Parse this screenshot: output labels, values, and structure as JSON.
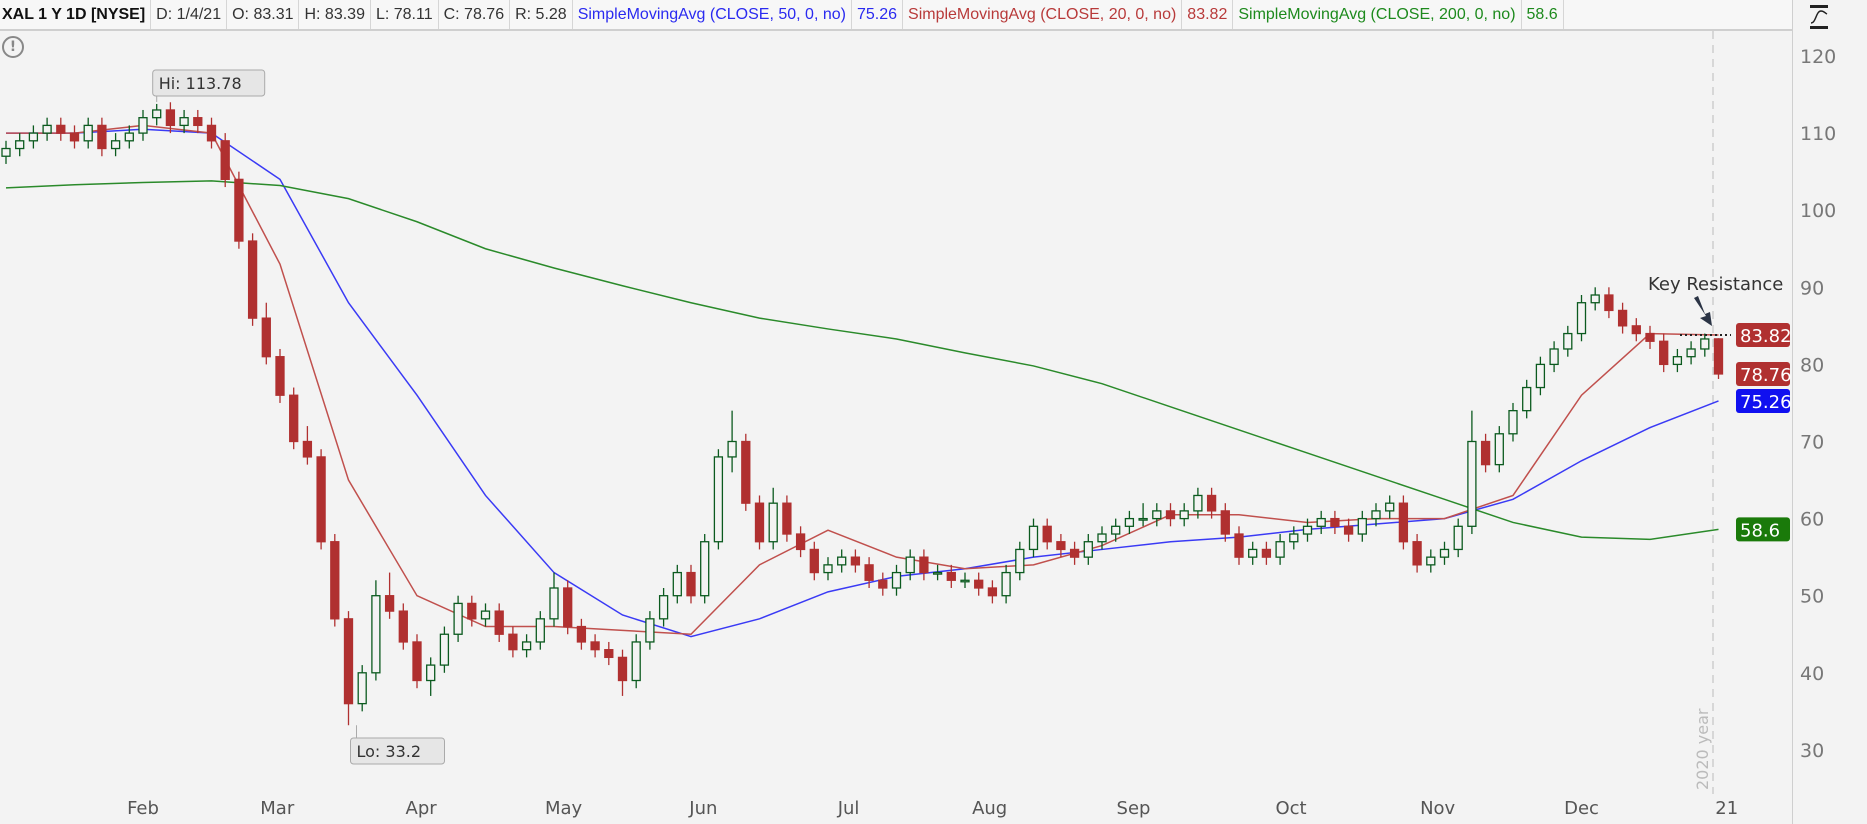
{
  "header": {
    "symbol": "XAL 1 Y 1D [NYSE]",
    "date": "D: 1/4/21",
    "open": "O: 83.31",
    "high": "H: 83.39",
    "low": "L: 78.11",
    "close": "C: 78.76",
    "range": "R: 5.28",
    "sma50_label": "SimpleMovingAvg (CLOSE, 50, 0, no)",
    "sma50_value": "75.26",
    "sma20_label": "SimpleMovingAvg (CLOSE, 20, 0, no)",
    "sma20_value": "83.82",
    "sma200_label": "SimpleMovingAvg (CLOSE, 200, 0, no)",
    "sma200_value": "58.6"
  },
  "colors": {
    "up": "#0b5a1f",
    "down": "#b03030",
    "sma50": "#3a3af5",
    "sma20": "#c0504d",
    "sma200": "#2a8a2a"
  },
  "chart_data": {
    "type": "candlestick",
    "title": "XAL 1 Y 1D [NYSE]",
    "ylim": [
      25,
      125
    ],
    "y_ticks": [
      30,
      40,
      50,
      60,
      70,
      80,
      90,
      100,
      110,
      120
    ],
    "x_ticks": [
      {
        "label": "Feb",
        "i": 10
      },
      {
        "label": "Mar",
        "i": 19.8
      },
      {
        "label": "Apr",
        "i": 30.3
      },
      {
        "label": "May",
        "i": 40.7
      },
      {
        "label": "Jun",
        "i": 50.9
      },
      {
        "label": "Jul",
        "i": 61.5
      },
      {
        "label": "Aug",
        "i": 71.8
      },
      {
        "label": "Sep",
        "i": 82.3
      },
      {
        "label": "Oct",
        "i": 93.8
      },
      {
        "label": "Nov",
        "i": 104.5
      },
      {
        "label": "Dec",
        "i": 115
      },
      {
        "label": "21",
        "i": 125.6
      }
    ],
    "candles_note": "2-day sampled OHLC",
    "candles": [
      [
        107,
        109,
        106,
        108
      ],
      [
        108,
        110,
        107,
        109
      ],
      [
        109,
        111,
        108,
        110
      ],
      [
        110,
        112,
        109,
        111
      ],
      [
        111,
        112,
        109,
        110
      ],
      [
        110,
        111,
        108,
        109
      ],
      [
        109,
        112,
        108,
        111
      ],
      [
        111,
        112,
        107,
        108
      ],
      [
        108,
        110,
        107,
        109
      ],
      [
        109,
        111,
        108,
        110
      ],
      [
        110,
        113,
        109,
        112
      ],
      [
        112,
        113.78,
        111,
        113
      ],
      [
        113,
        114,
        110,
        111
      ],
      [
        111,
        113,
        110,
        112
      ],
      [
        112,
        113,
        110,
        111
      ],
      [
        111,
        112,
        108,
        109
      ],
      [
        109,
        110,
        103,
        104
      ],
      [
        104,
        105,
        95,
        96
      ],
      [
        96,
        97,
        85,
        86
      ],
      [
        86,
        88,
        80,
        81
      ],
      [
        81,
        82,
        75,
        76
      ],
      [
        76,
        77,
        69,
        70
      ],
      [
        70,
        72,
        67,
        68
      ],
      [
        68,
        69,
        56,
        57
      ],
      [
        57,
        58,
        46,
        47
      ],
      [
        47,
        48,
        33.2,
        36
      ],
      [
        36,
        41,
        35,
        40
      ],
      [
        40,
        52,
        39,
        50
      ],
      [
        50,
        53,
        47,
        48
      ],
      [
        48,
        49,
        43,
        44
      ],
      [
        44,
        45,
        38,
        39
      ],
      [
        39,
        42,
        37,
        41
      ],
      [
        41,
        46,
        40,
        45
      ],
      [
        45,
        50,
        44,
        49
      ],
      [
        49,
        50,
        46,
        47
      ],
      [
        47,
        49,
        46,
        48
      ],
      [
        48,
        49,
        44,
        45
      ],
      [
        45,
        46,
        42,
        43
      ],
      [
        43,
        45,
        42,
        44
      ],
      [
        44,
        48,
        43,
        47
      ],
      [
        47,
        53,
        46,
        51
      ],
      [
        51,
        52,
        45,
        46
      ],
      [
        46,
        47,
        43,
        44
      ],
      [
        44,
        45,
        42,
        43
      ],
      [
        43,
        44,
        41,
        42
      ],
      [
        42,
        43,
        37,
        39
      ],
      [
        39,
        45,
        38,
        44
      ],
      [
        44,
        48,
        43,
        47
      ],
      [
        47,
        51,
        46,
        50
      ],
      [
        50,
        54,
        49,
        53
      ],
      [
        53,
        54,
        49,
        50
      ],
      [
        50,
        58,
        49,
        57
      ],
      [
        57,
        69,
        56,
        68
      ],
      [
        68,
        74,
        66,
        70
      ],
      [
        70,
        71,
        61,
        62
      ],
      [
        62,
        63,
        56,
        57
      ],
      [
        57,
        64,
        56,
        62
      ],
      [
        62,
        63,
        57,
        58
      ],
      [
        58,
        59,
        55,
        56
      ],
      [
        56,
        57,
        52,
        53
      ],
      [
        53,
        55,
        52,
        54
      ],
      [
        54,
        56,
        53,
        55
      ],
      [
        55,
        56,
        53,
        54
      ],
      [
        54,
        55,
        51,
        52
      ],
      [
        52,
        53,
        50,
        51
      ],
      [
        51,
        54,
        50,
        53
      ],
      [
        53,
        56,
        52,
        55
      ],
      [
        55,
        56,
        52,
        53
      ],
      [
        53,
        54,
        52,
        53
      ],
      [
        53,
        54,
        51,
        52
      ],
      [
        52,
        53,
        51,
        52
      ],
      [
        52,
        53,
        50,
        51
      ],
      [
        51,
        52,
        49,
        50
      ],
      [
        50,
        54,
        49,
        53
      ],
      [
        53,
        57,
        52,
        56
      ],
      [
        56,
        60,
        55,
        59
      ],
      [
        59,
        60,
        56,
        57
      ],
      [
        57,
        58,
        55,
        56
      ],
      [
        56,
        57,
        54,
        55
      ],
      [
        55,
        58,
        54,
        57
      ],
      [
        57,
        59,
        56,
        58
      ],
      [
        58,
        60,
        57,
        59
      ],
      [
        59,
        61,
        58,
        60
      ],
      [
        60,
        62,
        59,
        60
      ],
      [
        60,
        62,
        59,
        61
      ],
      [
        61,
        62,
        59,
        60
      ],
      [
        60,
        62,
        59,
        61
      ],
      [
        61,
        64,
        60,
        63
      ],
      [
        63,
        64,
        60,
        61
      ],
      [
        61,
        62,
        57,
        58
      ],
      [
        58,
        59,
        54,
        55
      ],
      [
        55,
        57,
        54,
        56
      ],
      [
        56,
        57,
        54,
        55
      ],
      [
        55,
        58,
        54,
        57
      ],
      [
        57,
        59,
        56,
        58
      ],
      [
        58,
        60,
        57,
        59
      ],
      [
        59,
        61,
        58,
        60
      ],
      [
        60,
        61,
        58,
        59
      ],
      [
        59,
        60,
        57,
        58
      ],
      [
        58,
        61,
        57,
        60
      ],
      [
        60,
        62,
        59,
        61
      ],
      [
        61,
        63,
        60,
        62
      ],
      [
        62,
        63,
        56,
        57
      ],
      [
        57,
        58,
        53,
        54
      ],
      [
        54,
        56,
        53,
        55
      ],
      [
        55,
        57,
        54,
        56
      ],
      [
        56,
        60,
        55,
        59
      ],
      [
        59,
        74,
        58,
        70
      ],
      [
        70,
        71,
        66,
        67
      ],
      [
        67,
        72,
        66,
        71
      ],
      [
        71,
        75,
        70,
        74
      ],
      [
        74,
        78,
        73,
        77
      ],
      [
        77,
        81,
        76,
        80
      ],
      [
        80,
        83,
        79,
        82
      ],
      [
        82,
        85,
        81,
        84
      ],
      [
        84,
        89,
        83,
        88
      ],
      [
        88,
        90,
        87,
        89
      ],
      [
        89,
        90,
        86,
        87
      ],
      [
        87,
        88,
        84,
        85
      ],
      [
        85,
        86,
        83,
        84
      ],
      [
        84,
        85,
        82,
        83
      ],
      [
        83,
        84,
        79,
        80
      ],
      [
        80,
        82,
        79,
        81
      ],
      [
        81,
        83,
        80,
        82
      ],
      [
        82,
        84,
        81,
        83.3
      ],
      [
        83.31,
        83.39,
        78.11,
        78.76
      ]
    ],
    "series": [
      {
        "name": "SMA 50",
        "values": [
          110,
          110,
          110.5,
          110,
          104,
          88,
          76,
          63,
          53,
          47.5,
          44.7,
          47,
          50.5,
          52.5,
          53.5,
          55,
          56,
          57,
          57.6,
          58.6,
          59.3,
          60,
          62.5,
          67.5,
          71.8,
          75.26
        ]
      },
      {
        "name": "SMA 20",
        "values": [
          110,
          110,
          111,
          110,
          93,
          65,
          50,
          46,
          46,
          45.5,
          45,
          54,
          58.5,
          55,
          53.5,
          54,
          56.5,
          60.5,
          60.5,
          59.5,
          60,
          60,
          63,
          76,
          84,
          83.82
        ]
      },
      {
        "name": "SMA 200",
        "values": [
          102.9,
          103.3,
          103.6,
          103.8,
          103.2,
          101.5,
          98.5,
          95,
          92.5,
          90.2,
          88,
          86,
          84.6,
          83.3,
          81.5,
          79.8,
          77.5,
          74.5,
          71.5,
          68.5,
          65.5,
          62.5,
          59.5,
          57.6,
          57.3,
          58.6
        ]
      }
    ],
    "series_step": 5,
    "badges": [
      {
        "label": "83.82",
        "value": 83.82,
        "color": "#b03030"
      },
      {
        "label": "78.76",
        "value": 78.76,
        "color": "#b03030"
      },
      {
        "label": "75.26",
        "value": 75.26,
        "color": "#1010f0"
      },
      {
        "label": "58.6",
        "value": 58.6,
        "color": "#1a7a0a"
      }
    ],
    "annotations": {
      "hi": "Hi: 113.78",
      "hi_value": 113.78,
      "hi_i": 11,
      "lo": "Lo: 33.2",
      "lo_value": 33.2,
      "lo_i": 25,
      "resistance": "Key Resistance",
      "resistance_value": 83.82,
      "year": "2020 year"
    }
  }
}
